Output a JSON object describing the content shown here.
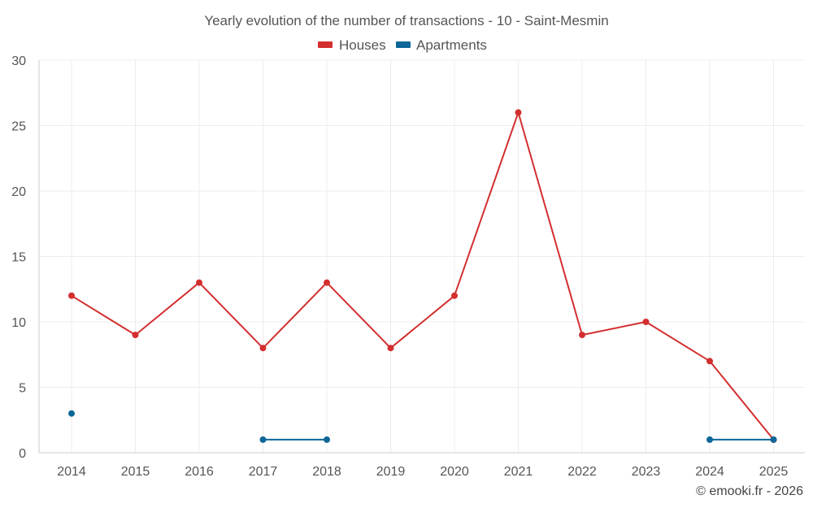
{
  "chart_data": {
    "type": "line",
    "title": "Yearly evolution of the number of transactions - 10 - Saint-Mesmin",
    "categories": [
      "2014",
      "2015",
      "2016",
      "2017",
      "2018",
      "2019",
      "2020",
      "2021",
      "2022",
      "2023",
      "2024",
      "2025"
    ],
    "ylim": [
      0,
      30
    ],
    "yticks": [
      0,
      5,
      10,
      15,
      20,
      25,
      30
    ],
    "grid": true,
    "legend_position": "top-center",
    "series": [
      {
        "name": "Houses",
        "color": "#d32f2f",
        "values": [
          12,
          9,
          13,
          8,
          13,
          8,
          12,
          26,
          9,
          10,
          7,
          1
        ]
      },
      {
        "name": "Apartments",
        "color": "#0d6799",
        "values": [
          3,
          null,
          null,
          1,
          1,
          null,
          null,
          null,
          null,
          null,
          1,
          1
        ]
      }
    ],
    "credit": "© emooki.fr - 2026"
  }
}
